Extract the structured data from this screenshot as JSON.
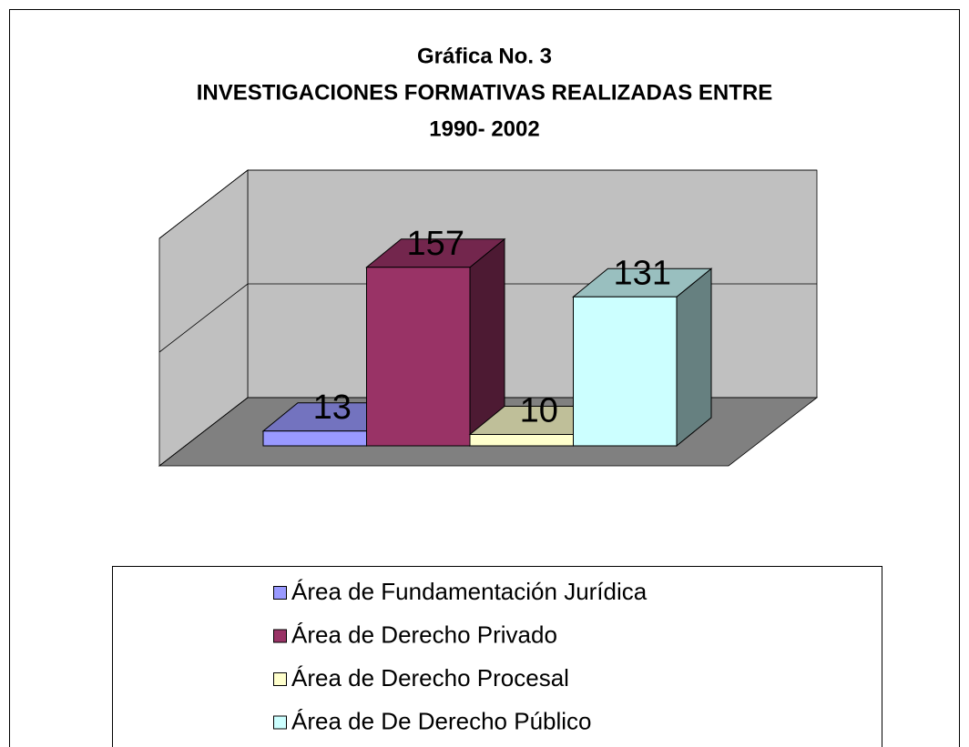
{
  "chart_data": {
    "type": "bar3d",
    "title": [
      "Gráfica No. 3",
      "INVESTIGACIONES FORMATIVAS REALIZADAS ENTRE",
      "1990- 2002"
    ],
    "series": [
      {
        "name": "Área de Fundamentación Jurídica",
        "color": "#9999ff",
        "values": [
          13
        ]
      },
      {
        "name": "Área de Derecho Privado",
        "color": "#993366",
        "values": [
          157
        ]
      },
      {
        "name": "Área de Derecho Procesal",
        "color": "#ffffcc",
        "values": [
          10
        ]
      },
      {
        "name": "Área de De Derecho Público",
        "color": "#ccffff",
        "values": [
          131
        ]
      }
    ],
    "ylim": [
      0,
      200
    ],
    "yticks": [
      0,
      100,
      200
    ],
    "grid": true
  }
}
